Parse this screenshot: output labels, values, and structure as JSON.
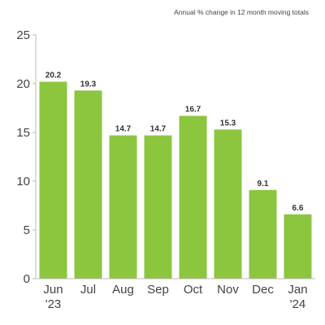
{
  "chart_data": {
    "type": "bar",
    "subtitle": "Annual % change in 12 month moving totals",
    "categories": [
      [
        "Jun",
        "'23"
      ],
      [
        "Jul"
      ],
      [
        "Aug"
      ],
      [
        "Sep"
      ],
      [
        "Oct"
      ],
      [
        "Nov"
      ],
      [
        "Dec"
      ],
      [
        "Jan",
        "'24"
      ]
    ],
    "values": [
      20.2,
      19.3,
      14.7,
      14.7,
      16.7,
      15.3,
      9.1,
      6.6
    ],
    "data_labels": [
      "20.2",
      "19.3",
      "14.7",
      "14.7",
      "16.7",
      "15.3",
      "9.1",
      "6.6"
    ],
    "ylim": [
      0,
      25
    ],
    "yticks": [
      0,
      5,
      10,
      15,
      20,
      25
    ],
    "grid": false,
    "legend": "none",
    "bar_color": "#8cc63f"
  }
}
